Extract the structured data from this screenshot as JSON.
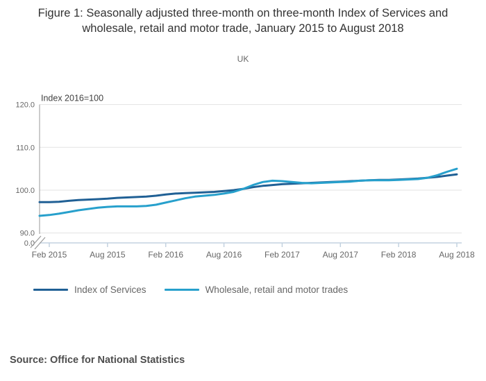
{
  "colors": {
    "series_dark": "#206095",
    "series_light": "#27A0CC",
    "grid": "#e2e2e2",
    "axis_gray": "#999999",
    "axis_light": "#c3d2e0",
    "text_gray": "#666666",
    "axis_title_color": "#404040",
    "title_color": "#333333",
    "source_color": "#4d4d4d"
  },
  "source": {
    "label": "Source: Office for National Statistics"
  },
  "chart_data": {
    "type": "line",
    "title": "Figure 1: Seasonally adjusted three-month on three-month Index of Services and wholesale, retail and motor trade, January 2015 to August 2018",
    "subtitle": "UK",
    "axis_title": "Index 2016=100",
    "grid": true,
    "legend_position": "bottom-left",
    "x_start": "Jan 2015",
    "x_end": "Aug 2018",
    "n_months": 44,
    "x_tick_labels": [
      "Feb 2015",
      "Aug 2015",
      "Feb 2016",
      "Aug 2016",
      "Feb 2017",
      "Aug 2017",
      "Feb 2018",
      "Aug 2018"
    ],
    "x_tick_months": [
      1,
      7,
      13,
      19,
      25,
      31,
      37,
      43
    ],
    "y_ticks": [
      120,
      110,
      100,
      90
    ],
    "y_axis_break_label": "0.0",
    "ylim_displayed": [
      90,
      120
    ],
    "series": [
      {
        "name": "Index of Services",
        "color": "#206095",
        "values": [
          97.2,
          97.2,
          97.3,
          97.5,
          97.7,
          97.8,
          97.9,
          98.0,
          98.2,
          98.3,
          98.4,
          98.5,
          98.7,
          99.0,
          99.2,
          99.3,
          99.4,
          99.5,
          99.6,
          99.8,
          100.0,
          100.3,
          100.7,
          101.0,
          101.2,
          101.4,
          101.5,
          101.6,
          101.7,
          101.8,
          101.9,
          102.0,
          102.1,
          102.2,
          102.3,
          102.4,
          102.4,
          102.5,
          102.6,
          102.7,
          102.9,
          103.1,
          103.4,
          103.7
        ]
      },
      {
        "name": "Wholesale, retail and motor trades",
        "color": "#27A0CC",
        "values": [
          94.0,
          94.2,
          94.5,
          94.9,
          95.3,
          95.6,
          95.9,
          96.1,
          96.2,
          96.2,
          96.2,
          96.3,
          96.6,
          97.1,
          97.6,
          98.1,
          98.5,
          98.7,
          98.9,
          99.2,
          99.6,
          100.3,
          101.2,
          101.9,
          102.2,
          102.1,
          101.9,
          101.7,
          101.6,
          101.7,
          101.8,
          101.9,
          102.0,
          102.2,
          102.3,
          102.3,
          102.3,
          102.4,
          102.5,
          102.6,
          102.9,
          103.5,
          104.3,
          105.0
        ]
      }
    ]
  }
}
